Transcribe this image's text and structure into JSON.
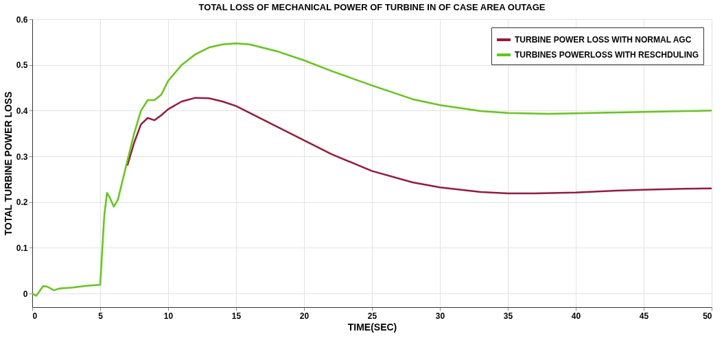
{
  "chart_data": {
    "type": "line",
    "title": "TOTAL LOSS OF MECHANICAL POWER OF TURBINE IN OF CASE AREA OUTAGE",
    "xlabel": "TIME(SEC)",
    "ylabel": "TOTAL TURBINE POWER LOSS",
    "xlim": [
      0,
      50
    ],
    "ylim": [
      -0.03,
      0.6
    ],
    "xticks": [
      0,
      5,
      10,
      15,
      20,
      25,
      30,
      35,
      40,
      45,
      50
    ],
    "yticks": [
      0,
      0.1,
      0.2,
      0.3,
      0.4,
      0.5,
      0.6
    ],
    "grid": true,
    "legend": "top right",
    "line_style": "solid",
    "marker": "none",
    "series": [
      {
        "name": "TURBINE POWER LOSS WITH NORMAL AGC",
        "color": "#a0163a",
        "x": [
          7,
          7.5,
          8,
          8.5,
          9,
          9.5,
          10,
          11,
          12,
          13,
          14,
          15,
          17,
          20,
          22,
          25,
          28,
          30,
          33,
          35,
          37,
          40,
          43,
          45,
          48,
          50
        ],
        "values": [
          0.28,
          0.33,
          0.37,
          0.384,
          0.379,
          0.39,
          0.403,
          0.42,
          0.428,
          0.427,
          0.42,
          0.41,
          0.38,
          0.335,
          0.305,
          0.268,
          0.243,
          0.232,
          0.222,
          0.219,
          0.219,
          0.221,
          0.225,
          0.227,
          0.229,
          0.23
        ]
      },
      {
        "name": "TURBINES POWERLOSS WITH RESCHDULING",
        "color": "#5ccc10",
        "x": [
          0,
          0.3,
          0.8,
          1.1,
          1.6,
          2,
          3,
          4,
          5,
          5.1,
          5.3,
          5.5,
          5.7,
          6,
          6.3,
          7,
          7.5,
          8,
          8.5,
          9,
          9.5,
          10,
          11,
          12,
          13,
          14,
          15,
          16,
          18,
          20,
          22,
          25,
          28,
          30,
          33,
          35,
          38,
          40,
          43,
          45,
          48,
          50
        ],
        "values": [
          0,
          -0.005,
          0.016,
          0.015,
          0.007,
          0.011,
          0.013,
          0.017,
          0.019,
          0.07,
          0.17,
          0.22,
          0.21,
          0.19,
          0.205,
          0.29,
          0.35,
          0.4,
          0.423,
          0.423,
          0.435,
          0.465,
          0.5,
          0.523,
          0.538,
          0.545,
          0.547,
          0.545,
          0.53,
          0.51,
          0.487,
          0.455,
          0.425,
          0.412,
          0.399,
          0.395,
          0.393,
          0.394,
          0.396,
          0.397,
          0.399,
          0.4
        ]
      }
    ]
  }
}
